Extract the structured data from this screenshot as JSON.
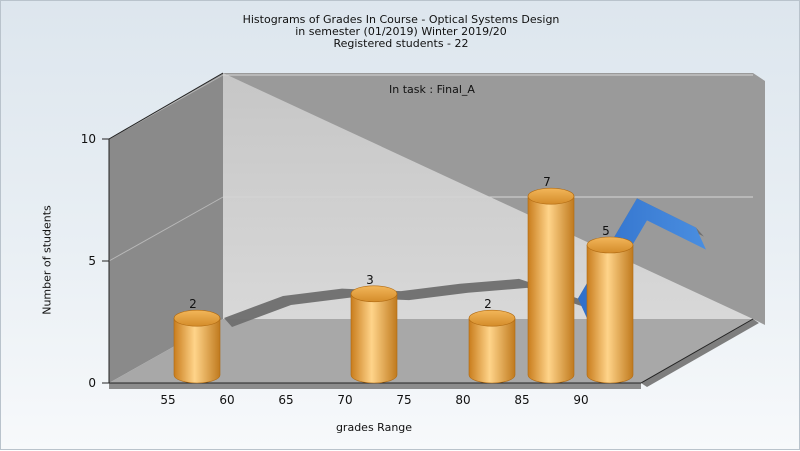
{
  "title_lines": [
    "Histograms of Grades  In Course - Optical Systems Design",
    "in semester  (01/2019) Winter 2019/20",
    "Registered students - 22"
  ],
  "chart_data": {
    "type": "bar",
    "title": "Histograms of Grades  In Course - Optical Systems Design",
    "subtitle": "in semester  (01/2019) Winter 2019/20",
    "note": "Registered students - 22",
    "annotation": "In task : Final_A",
    "xlabel": "grades Range",
    "ylabel": "Number of students",
    "x_ticks": [
      "55",
      "60",
      "65",
      "70",
      "75",
      "80",
      "85",
      "90"
    ],
    "y_ticks": [
      "0",
      "5",
      "10"
    ],
    "ylim": [
      0,
      10
    ],
    "grid": true,
    "series": [
      {
        "kind": "bar",
        "x": [
          55,
          70,
          80,
          85,
          90
        ],
        "values": [
          2,
          3,
          2,
          7,
          5
        ],
        "color": "#e6a23c"
      },
      {
        "kind": "area-ribbon",
        "x": [
          55,
          60,
          65,
          70,
          75,
          80,
          85,
          90,
          95
        ],
        "values": [
          1.6,
          2.5,
          2.8,
          2.7,
          3.0,
          3.2,
          2.4,
          6.5,
          5.3
        ],
        "color": "#6e6e6e",
        "highlight_color": "#3a7bd5"
      }
    ]
  }
}
